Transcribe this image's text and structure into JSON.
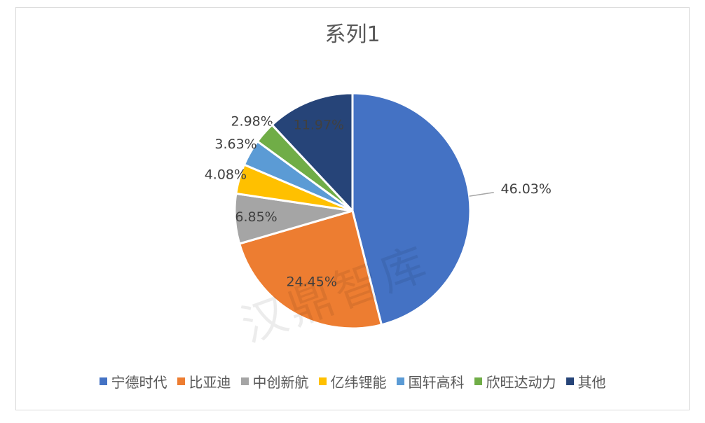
{
  "chart_data": {
    "type": "pie",
    "title": "系列1",
    "categories": [
      "宁德时代",
      "比亚迪",
      "中创新航",
      "亿纬锂能",
      "国轩高科",
      "欣旺达动力",
      "其他"
    ],
    "values": [
      46.03,
      24.45,
      6.85,
      4.08,
      3.63,
      2.98,
      11.97
    ],
    "labels": [
      "46.03%",
      "24.45%",
      "6.85%",
      "4.08%",
      "3.63%",
      "2.98%",
      "11.97%"
    ],
    "colors": [
      "#4472C4",
      "#ED7D31",
      "#A5A5A5",
      "#FFC000",
      "#5B9BD5",
      "#70AD47",
      "#264478"
    ],
    "legend_position": "bottom"
  },
  "watermark": "汉鼎智库"
}
